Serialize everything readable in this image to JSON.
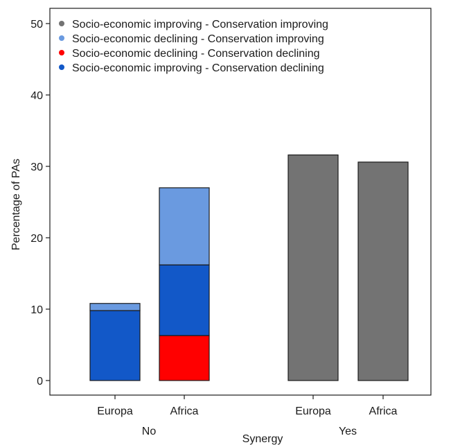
{
  "chart_data": {
    "type": "bar",
    "stacked": true,
    "ylabel": "Percentage of PAs",
    "xlabel": "Synergy",
    "ylim": [
      0,
      52
    ],
    "yticks": [
      0,
      10,
      20,
      30,
      40,
      50
    ],
    "grid": false,
    "legend_position": "top-left",
    "groups": [
      {
        "label": "No",
        "categories": [
          "Europa",
          "Africa"
        ]
      },
      {
        "label": "Yes",
        "categories": [
          "Europa",
          "Africa"
        ]
      }
    ],
    "series": [
      {
        "name": "Socio-economic improving - Conservation improving",
        "color": "#737373",
        "values": [
          0,
          0,
          31.6,
          30.6
        ]
      },
      {
        "name": "Socio-economic declining - Conservation improving",
        "color": "#6a9ae0",
        "values": [
          1.0,
          10.8,
          0,
          0
        ]
      },
      {
        "name": "Socio-economic declining - Conservation declining",
        "color": "#ff0000",
        "values": [
          0,
          6.3,
          0,
          0
        ]
      },
      {
        "name": "Socio-economic improving - Conservation declining",
        "color": "#1258c8",
        "values": [
          9.8,
          9.9,
          0,
          0
        ]
      }
    ],
    "stack_order": [
      2,
      3,
      1,
      0
    ]
  }
}
